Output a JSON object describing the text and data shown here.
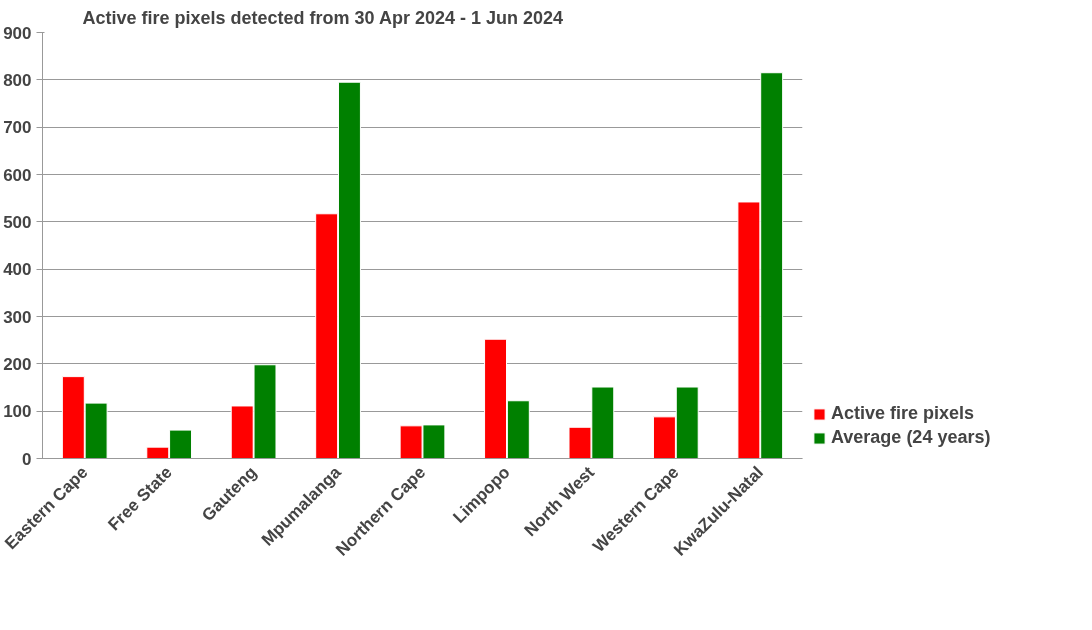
{
  "chart_data": {
    "type": "bar",
    "title": "Active fire pixels detected from 30 Apr 2024 - 1 Jun 2024",
    "categories": [
      "Eastern Cape",
      "Free State",
      "Gauteng",
      "Mpumalanga",
      "Northern Cape",
      "Limpopo",
      "North West",
      "Western Cape",
      "KwaZulu-Natal"
    ],
    "series": [
      {
        "name": "Active fire pixels",
        "color": "#ff0000",
        "values": [
          173,
          24,
          111,
          517,
          69,
          252,
          66,
          88,
          542
        ]
      },
      {
        "name": "Average (24 years)",
        "color": "#008000",
        "values": [
          117,
          60,
          198,
          795,
          71,
          122,
          151,
          151,
          815
        ]
      }
    ],
    "ylim": [
      0,
      900
    ],
    "yticks": [
      0,
      100,
      200,
      300,
      400,
      500,
      600,
      700,
      800,
      900
    ],
    "grid": "y",
    "legend": "right"
  }
}
